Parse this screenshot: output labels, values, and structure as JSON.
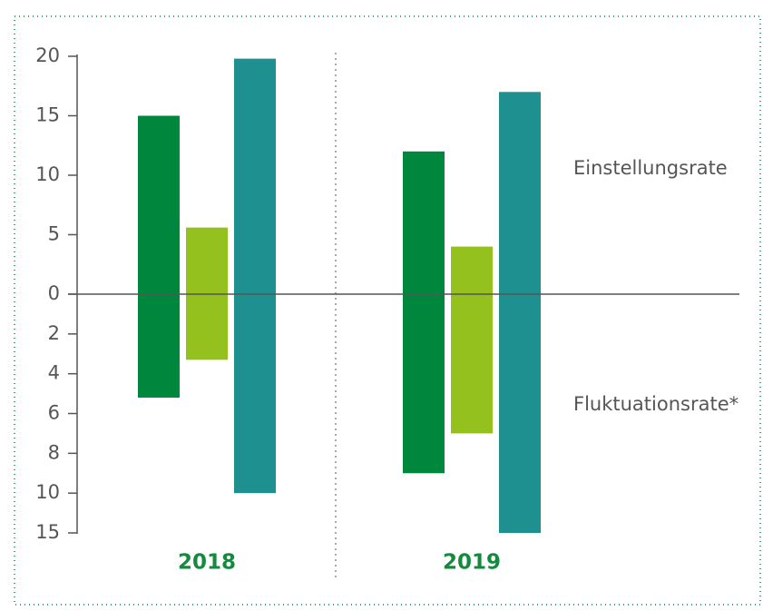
{
  "chart_data": {
    "type": "floating-bar",
    "categories": [
      "2018",
      "2019"
    ],
    "series": [
      {
        "color": "#00873e",
        "hire": [
          15.0,
          12.0
        ],
        "turnover": [
          5.2,
          9.0
        ]
      },
      {
        "color": "#95c11f",
        "hire": [
          5.6,
          4.0
        ],
        "turnover": [
          3.3,
          7.0
        ]
      },
      {
        "color": "#1e9090",
        "hire": [
          19.8,
          17.0
        ],
        "turnover": [
          10.0,
          15
        ]
      }
    ],
    "upper_label": "Einstellungsrate",
    "lower_label": "Fluktuationsrate*",
    "ylim": [
      0,
      20
    ],
    "yticks": [
      0,
      5,
      10,
      15,
      20
    ],
    "lower_ticks": [
      2,
      4,
      6,
      8,
      10,
      15
    ]
  }
}
